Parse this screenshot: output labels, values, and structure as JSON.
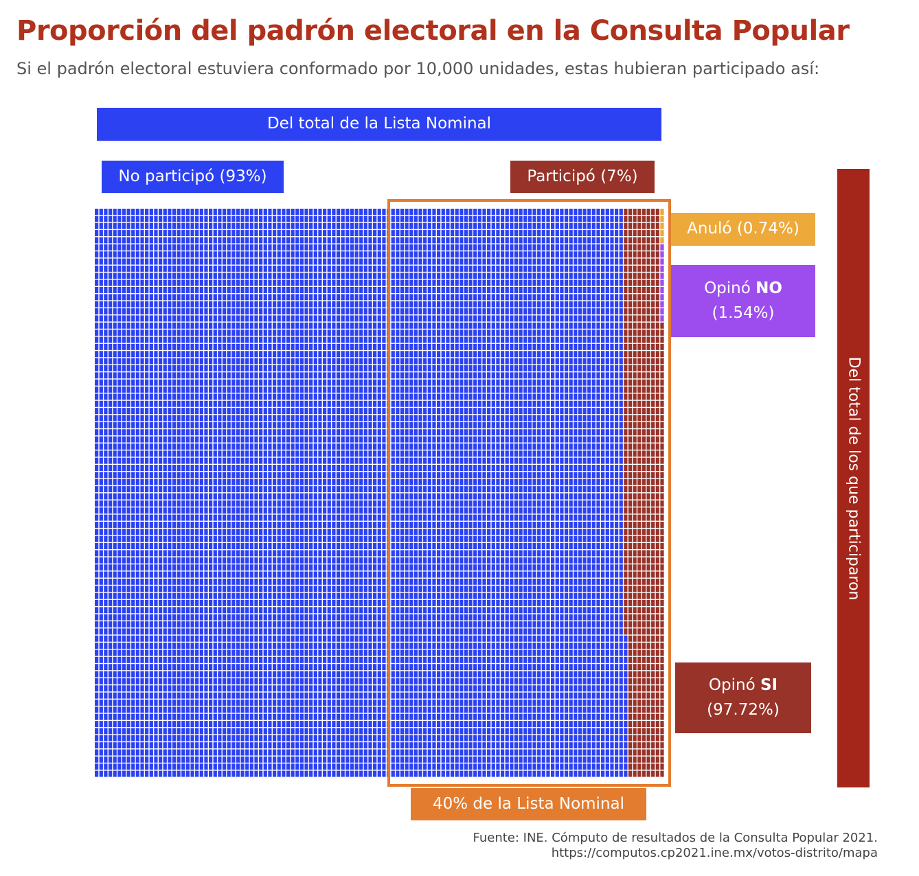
{
  "title": "Proporción del padrón electoral en la Consulta Popular",
  "subtitle": "Si el padrón electoral estuviera conformado por 10,000 unidades, estas hubieran participado así:",
  "labels": {
    "total_lista": "Del total de la Lista Nominal",
    "no_participo": "No participó (93%)",
    "participo": "Participó (7%)",
    "anulo": "Anuló (0.74%)",
    "opino_no_prefix": "Opinó ",
    "opino_no_bold": "NO",
    "opino_no_pct": "(1.54%)",
    "opino_si_prefix": "Opinó ",
    "opino_si_bold": "SI",
    "opino_si_pct": "(97.72%)",
    "cuarenta": "40% de la Lista Nominal",
    "participaron": "Del total de los que participaron"
  },
  "source": {
    "line1": "Fuente: INE. Cómputo de resultados de la Consulta Popular 2021.",
    "line2": "https://computos.cp2021.ine.mx/votos-distrito/mapa"
  },
  "colors": {
    "no_participo": "#2c41f2",
    "opino_si": "#973329",
    "opino_no": "#9d4dee",
    "anulo": "#eea93b",
    "highlight": "#e37c2f",
    "title": "#b0321c"
  },
  "chart_data": {
    "type": "waffle",
    "total_units": 10000,
    "grid_columns": 125,
    "grid_rows": 80,
    "groups": [
      {
        "name": "No participó",
        "percent": 93,
        "units": 9300
      },
      {
        "name": "Participó",
        "percent": 7,
        "units": 700,
        "breakdown": [
          {
            "name": "Opinó SI",
            "percent_of_participants": 97.72,
            "units": 684
          },
          {
            "name": "Opinó NO",
            "percent_of_participants": 1.54,
            "units": 11
          },
          {
            "name": "Anuló",
            "percent_of_participants": 0.74,
            "units": 5
          }
        ]
      }
    ],
    "highlight_percent_of_list": 40
  }
}
